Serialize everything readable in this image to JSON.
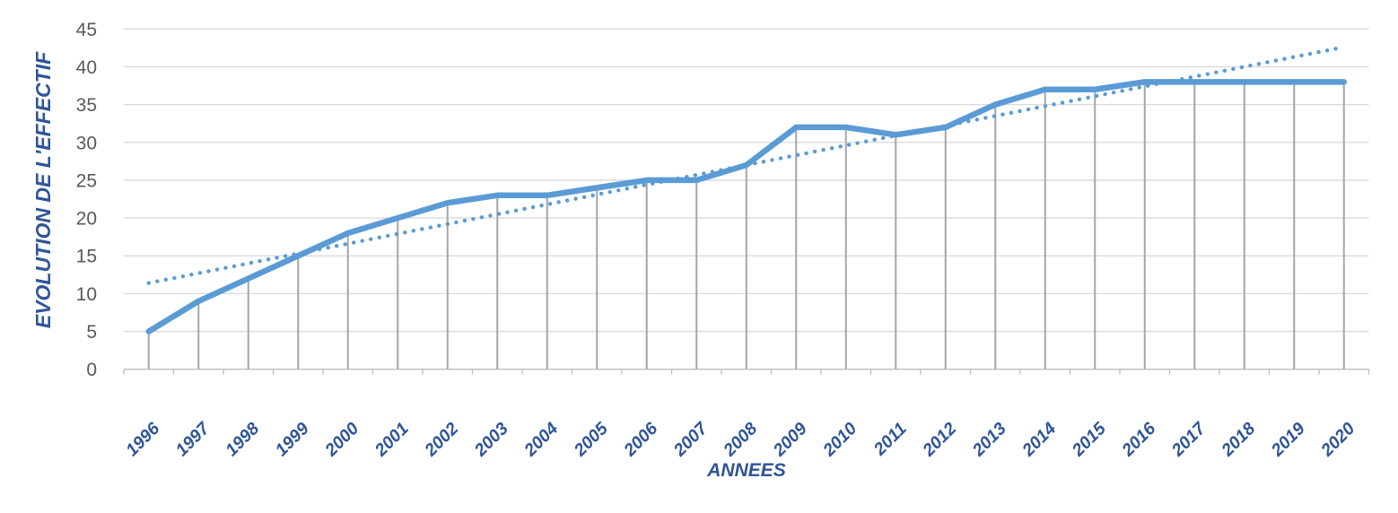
{
  "chart_data": {
    "type": "line",
    "title": "",
    "xlabel": "ANNEES",
    "ylabel": "EVOLUTION DE L'EFFECTIF",
    "categories": [
      "1996",
      "1997",
      "1998",
      "1999",
      "2000",
      "2001",
      "2002",
      "2003",
      "2004",
      "2005",
      "2006",
      "2007",
      "2008",
      "2009",
      "2010",
      "2011",
      "2012",
      "2013",
      "2014",
      "2015",
      "2016",
      "2017",
      "2018",
      "2019",
      "2020"
    ],
    "series": [
      {
        "name": "effectif",
        "style": "solid",
        "values": [
          5,
          9,
          12,
          15,
          18,
          20,
          22,
          23,
          23,
          24,
          25,
          25,
          27,
          32,
          32,
          31,
          32,
          35,
          37,
          37,
          38,
          38,
          38,
          38,
          38
        ]
      },
      {
        "name": "tendance-lineaire",
        "style": "dotted",
        "trend_start": 11.4,
        "trend_end": 42.6
      }
    ],
    "ylim": [
      0,
      45
    ],
    "y_ticks": [
      0,
      5,
      10,
      15,
      20,
      25,
      30,
      35,
      40,
      45
    ],
    "grid": true,
    "drop_lines": true,
    "legend_position": "none"
  },
  "colors": {
    "series_blue": "#5B9BD5",
    "axis_title_blue": "#2F5597",
    "year_label_blue": "#2F5597",
    "tick_label_gray": "#595959",
    "gridline": "#D9D9D9",
    "drop_line": "#A6A6A6",
    "axis_line": "#BFBFBF",
    "background": "#FFFFFF"
  }
}
